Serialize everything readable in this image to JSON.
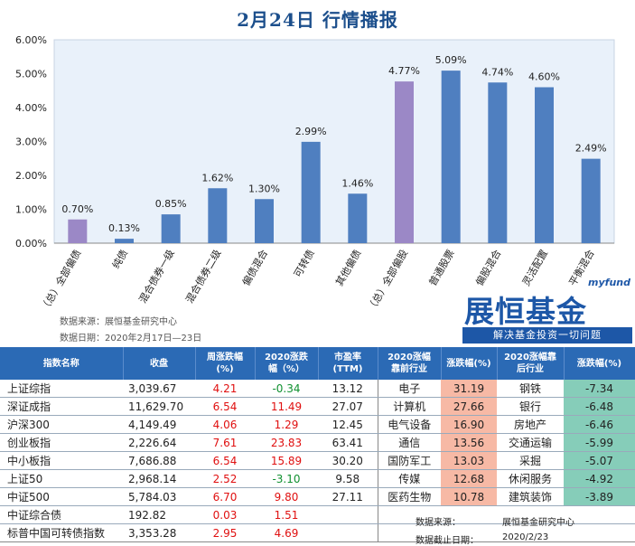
{
  "title": "2月24日  行情播报",
  "chart_data": {
    "type": "bar",
    "categories": [
      "（总）全部偏债",
      "纯债",
      "混合债券一级",
      "混合债券二级",
      "偏债混合",
      "可转债",
      "其他偏债",
      "（总）全部偏股",
      "普通股票",
      "偏股混合",
      "灵活配置",
      "平衡混合"
    ],
    "values": [
      0.7,
      0.13,
      0.85,
      1.62,
      1.3,
      2.99,
      1.46,
      4.77,
      5.09,
      4.74,
      4.6,
      2.49
    ],
    "value_labels": [
      "0.70%",
      "0.13%",
      "0.85%",
      "1.62%",
      "1.30%",
      "2.99%",
      "1.46%",
      "4.77%",
      "5.09%",
      "4.74%",
      "4.60%",
      "2.49%"
    ],
    "highlight": [
      0,
      7
    ],
    "ylim": [
      0,
      6
    ],
    "yticks": [
      "0.00%",
      "1.00%",
      "2.00%",
      "3.00%",
      "4.00%",
      "5.00%",
      "6.00%"
    ],
    "colors": {
      "bar": "#4f7fc0",
      "highlight": "#9b88c6",
      "plot_bg": "#e9f1fa"
    },
    "xlabel": "",
    "ylabel": ""
  },
  "source": {
    "line1": "数据来源：展恒基金研究中心",
    "line2": "数据日期：2020年2月17日—23日"
  },
  "logo": {
    "small": "myfund",
    "big": "展恒基金",
    "slogan": "解决基金投资一切问题"
  },
  "table": {
    "headers": [
      "指数名称",
      "收盘",
      "周涨跌幅\n(%)",
      "2020涨跌\n幅（%）",
      "市盈率\n(TTM)",
      "2020涨幅\n靠前行业",
      "涨跌幅(%)",
      "2020涨幅靠\n后行业",
      "涨跌幅(%)"
    ],
    "rows": [
      {
        "name": "上证综指",
        "close": "3,039.67",
        "week": "4.21",
        "ytd": "-0.34",
        "pe": "13.12",
        "top": "电子",
        "top_chg": "31.19",
        "bot": "钢铁",
        "bot_chg": "-7.34"
      },
      {
        "name": "深证成指",
        "close": "11,629.70",
        "week": "6.54",
        "ytd": "11.49",
        "pe": "27.07",
        "top": "计算机",
        "top_chg": "27.66",
        "bot": "银行",
        "bot_chg": "-6.48"
      },
      {
        "name": "沪深300",
        "close": "4,149.49",
        "week": "4.06",
        "ytd": "1.29",
        "pe": "12.45",
        "top": "电气设备",
        "top_chg": "16.90",
        "bot": "房地产",
        "bot_chg": "-6.46"
      },
      {
        "name": "创业板指",
        "close": "2,226.64",
        "week": "7.61",
        "ytd": "23.83",
        "pe": "63.41",
        "top": "通信",
        "top_chg": "13.56",
        "bot": "交通运输",
        "bot_chg": "-5.99"
      },
      {
        "name": "中小板指",
        "close": "7,686.88",
        "week": "6.54",
        "ytd": "15.89",
        "pe": "30.20",
        "top": "国防军工",
        "top_chg": "13.03",
        "bot": "采掘",
        "bot_chg": "-5.07"
      },
      {
        "name": "上证50",
        "close": "2,968.14",
        "week": "2.52",
        "ytd": "-3.10",
        "pe": "9.58",
        "top": "传媒",
        "top_chg": "12.68",
        "bot": "休闲服务",
        "bot_chg": "-4.92"
      },
      {
        "name": "中证500",
        "close": "5,784.03",
        "week": "6.70",
        "ytd": "9.80",
        "pe": "27.11",
        "top": "医药生物",
        "top_chg": "10.78",
        "bot": "建筑装饰",
        "bot_chg": "-3.89"
      },
      {
        "name": "中证综合债",
        "close": "192.82",
        "week": "0.03",
        "ytd": "1.51",
        "pe": "",
        "top": "",
        "top_chg": "",
        "bot": "",
        "bot_chg": ""
      },
      {
        "name": "标普中国可转债指数",
        "close": "3,353.28",
        "week": "2.95",
        "ytd": "4.69",
        "pe": "",
        "top": "",
        "top_chg": "",
        "bot": "",
        "bot_chg": ""
      }
    ]
  },
  "footer": {
    "source_label": "数据来源：",
    "source_value": "展恒基金研究中心",
    "date_label": "数据截止日期：",
    "date_value": "2020/2/23"
  }
}
